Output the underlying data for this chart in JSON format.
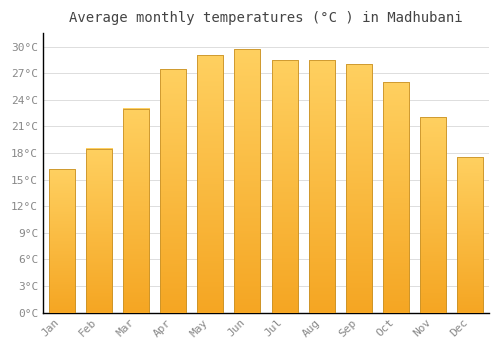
{
  "title": "Average monthly temperatures (°C ) in Madhubani",
  "months": [
    "Jan",
    "Feb",
    "Mar",
    "Apr",
    "May",
    "Jun",
    "Jul",
    "Aug",
    "Sep",
    "Oct",
    "Nov",
    "Dec"
  ],
  "temperatures": [
    16.2,
    18.5,
    23.0,
    27.5,
    29.0,
    29.7,
    28.5,
    28.5,
    28.0,
    26.0,
    22.0,
    17.5
  ],
  "bar_color_top": "#F5A623",
  "bar_color_bottom": "#FFD060",
  "bar_edge_color": "#C8922A",
  "ylim": [
    0,
    31.5
  ],
  "yticks": [
    0,
    3,
    6,
    9,
    12,
    15,
    18,
    21,
    24,
    27,
    30
  ],
  "ytick_labels": [
    "0°C",
    "3°C",
    "6°C",
    "9°C",
    "12°C",
    "15°C",
    "18°C",
    "21°C",
    "24°C",
    "27°C",
    "30°C"
  ],
  "background_color": "#FFFFFF",
  "grid_color": "#DDDDDD",
  "title_fontsize": 10,
  "tick_fontsize": 8,
  "tick_color": "#888888"
}
